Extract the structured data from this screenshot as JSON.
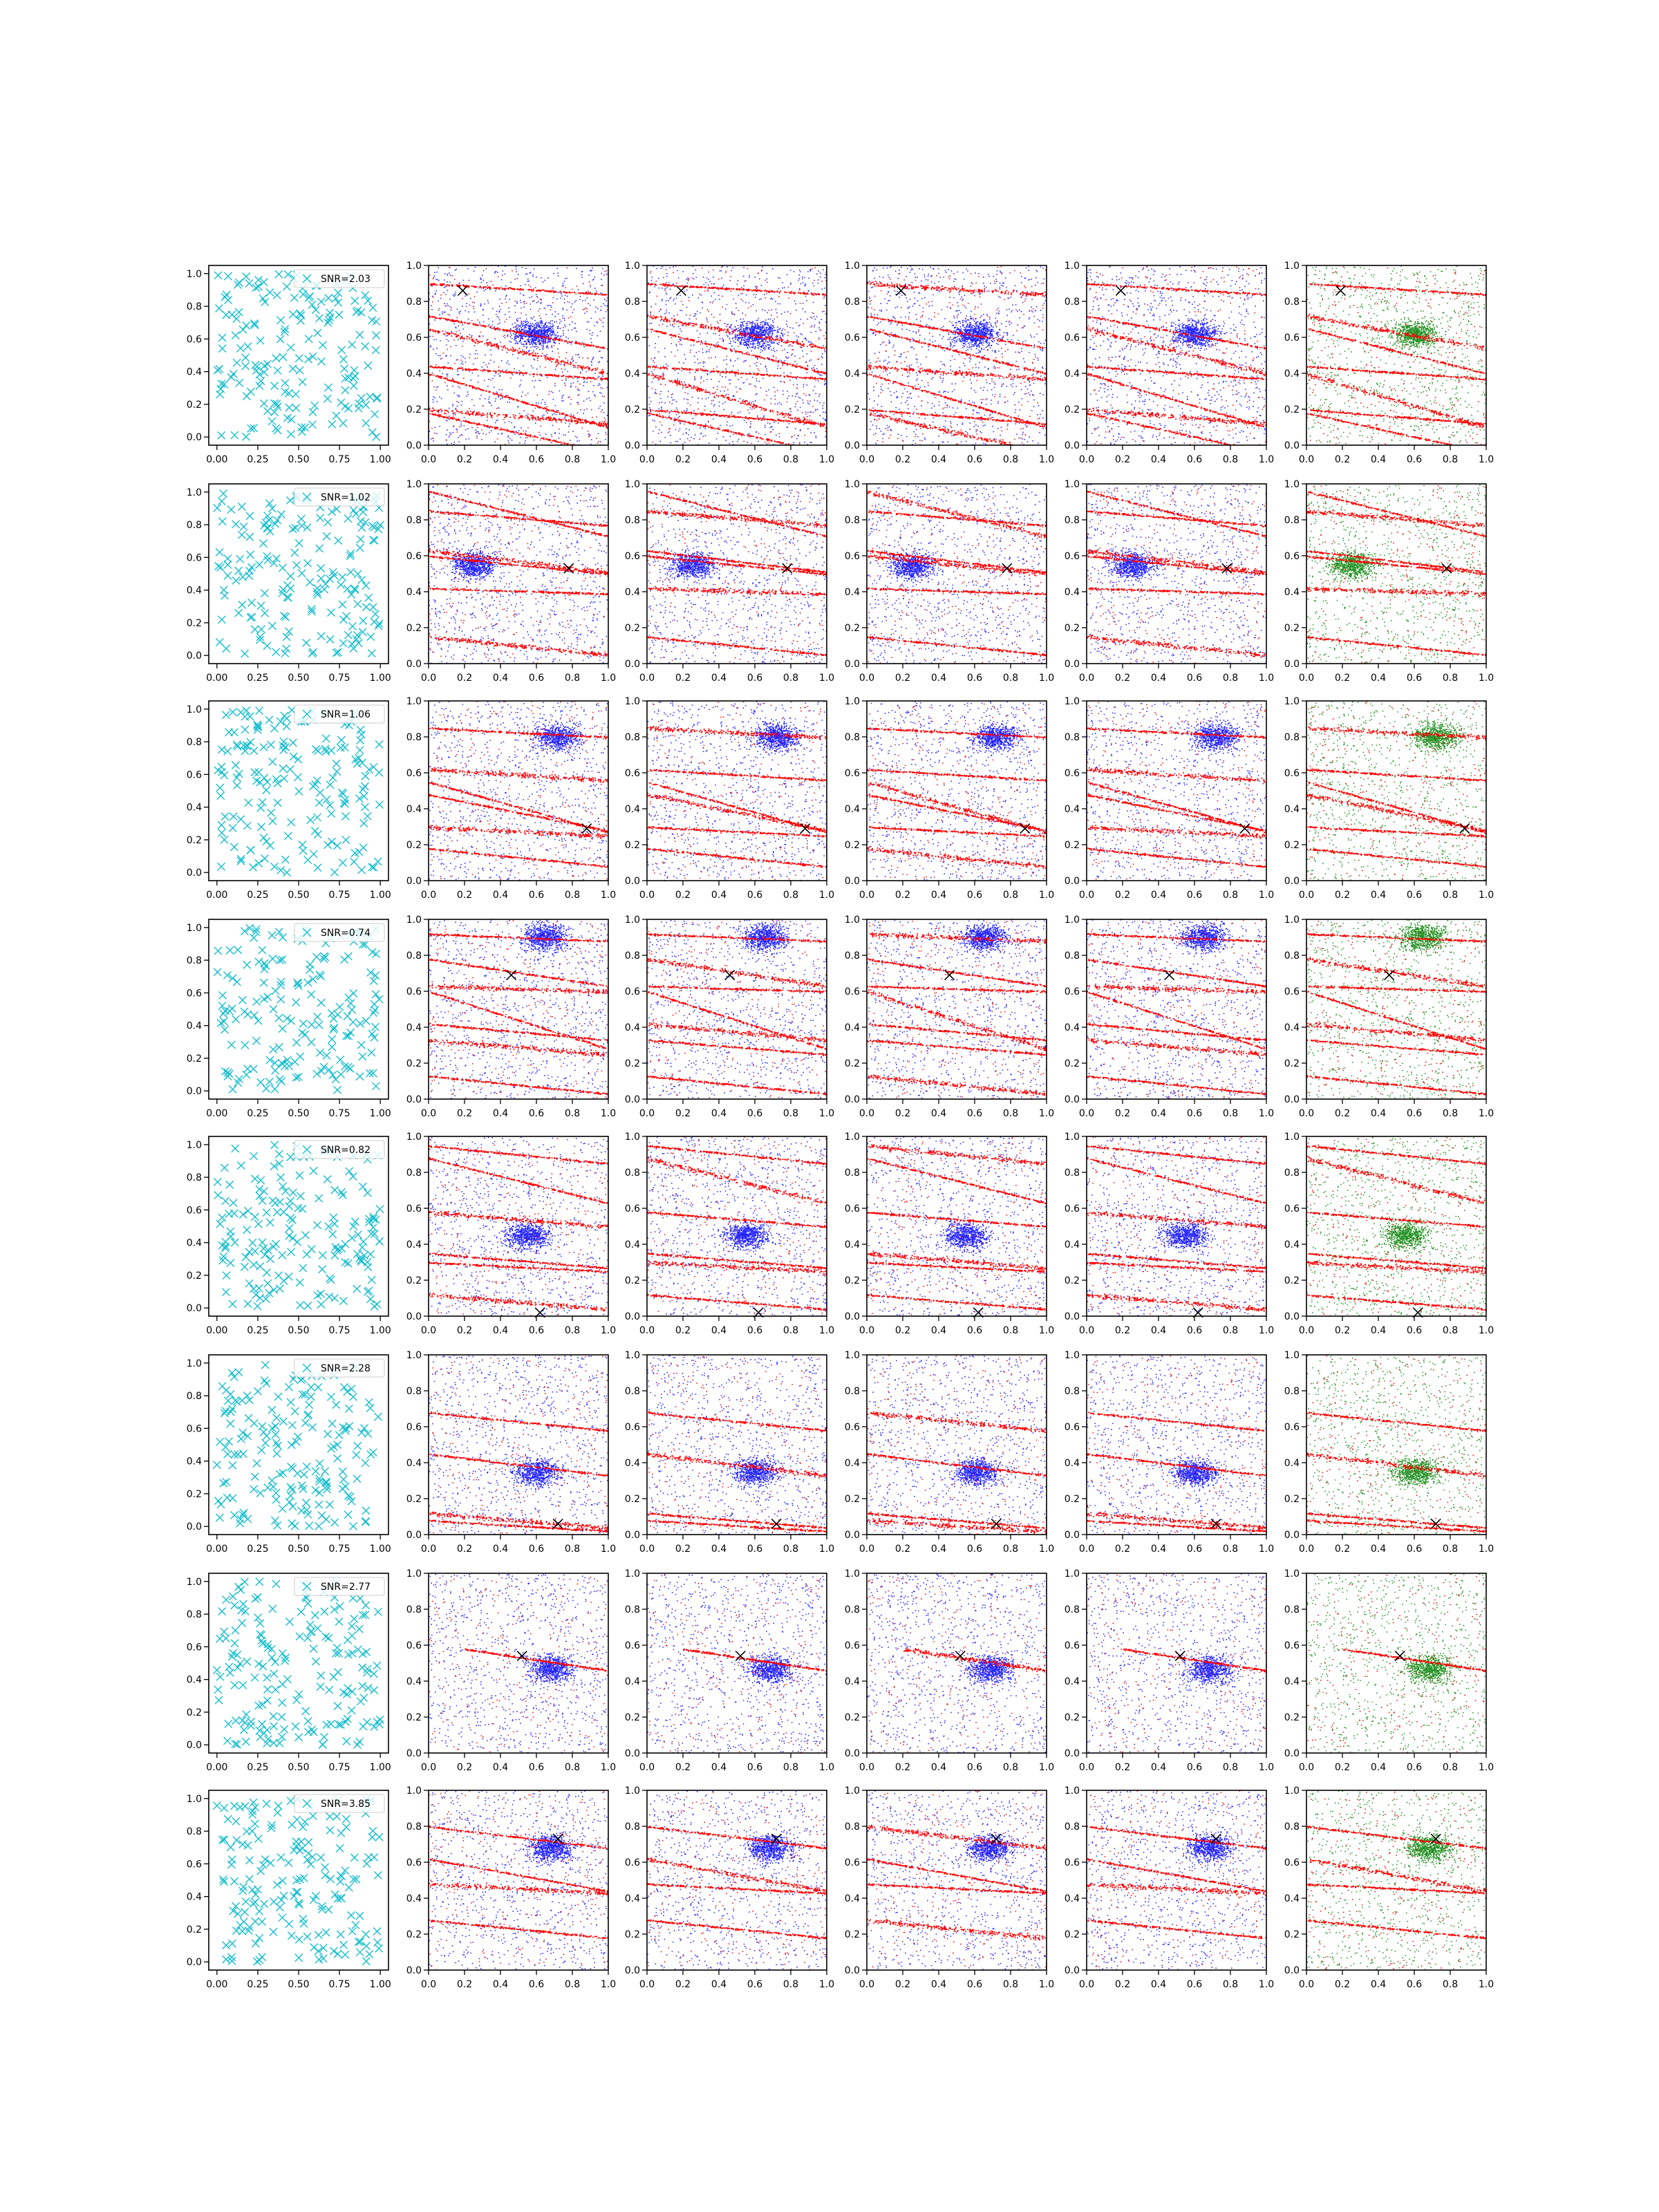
{
  "figure": {
    "rows": 8,
    "columns": 6,
    "background": "#ffffff"
  },
  "colors": {
    "cyan_markers": "#17BECF",
    "blue_points": "#0000FF",
    "red_points": "#FF0000",
    "green_points": "#008000",
    "black_marker": "#000000"
  },
  "axes": {
    "first_column": {
      "xlim": [
        -0.05,
        1.05
      ],
      "ylim": [
        -0.05,
        1.05
      ],
      "xticks": [
        "0.00",
        "0.25",
        "0.50",
        "0.75",
        "1.00"
      ],
      "yticks": [
        "0.0",
        "0.2",
        "0.4",
        "0.6",
        "0.8",
        "1.0"
      ]
    },
    "other_columns": {
      "xlim": [
        0,
        1
      ],
      "ylim": [
        0,
        1
      ],
      "xticks": [
        "0.0",
        "0.2",
        "0.4",
        "0.6",
        "0.8",
        "1.0"
      ],
      "yticks": [
        "0.0",
        "0.2",
        "0.4",
        "0.6",
        "0.8",
        "1.0"
      ]
    }
  },
  "chart_data": [
    {
      "type": "scatter",
      "row": 1,
      "legend": "SNR=2.03",
      "legend_placement": "upper-right",
      "target": [
        0.19,
        0.86
      ],
      "tracks": [
        {
          "x0": 0,
          "y0": 0.9,
          "slope": -0.06
        },
        {
          "x0": 0,
          "y0": 0.72,
          "slope": -0.18
        },
        {
          "x0": 0,
          "y0": 0.65,
          "slope": -0.25
        },
        {
          "x0": 0,
          "y0": 0.44,
          "slope": -0.07
        },
        {
          "x0": 0,
          "y0": 0.4,
          "slope": -0.3
        },
        {
          "x0": 0,
          "y0": 0.2,
          "slope": -0.08
        },
        {
          "x0": 0,
          "y0": 0.18,
          "slope": -0.22
        }
      ],
      "blue_cloud": [
        0.6,
        0.62
      ]
    },
    {
      "type": "scatter",
      "row": 2,
      "legend": "SNR=1.02",
      "legend_placement": "upper-right",
      "target": [
        0.78,
        0.53
      ],
      "tracks": [
        {
          "x0": 0,
          "y0": 0.96,
          "slope": -0.25
        },
        {
          "x0": 0,
          "y0": 0.85,
          "slope": -0.08
        },
        {
          "x0": 0,
          "y0": 0.63,
          "slope": -0.12
        },
        {
          "x0": 0,
          "y0": 0.6,
          "slope": -0.1
        },
        {
          "x0": 0,
          "y0": 0.42,
          "slope": -0.03
        },
        {
          "x0": 0,
          "y0": 0.15,
          "slope": -0.1
        }
      ],
      "blue_cloud": [
        0.25,
        0.55
      ]
    },
    {
      "type": "scatter",
      "row": 3,
      "legend": "SNR=1.06",
      "legend_placement": "upper-right",
      "target": [
        0.88,
        0.29
      ],
      "tracks": [
        {
          "x0": 0,
          "y0": 0.55,
          "slope": -0.28
        },
        {
          "x0": 0,
          "y0": 0.48,
          "slope": -0.2
        },
        {
          "x0": 0,
          "y0": 0.3,
          "slope": -0.05
        },
        {
          "x0": 0,
          "y0": 0.18,
          "slope": -0.1
        },
        {
          "x0": 0,
          "y0": 0.85,
          "slope": -0.05
        },
        {
          "x0": 0,
          "y0": 0.62,
          "slope": -0.06
        }
      ],
      "blue_cloud": [
        0.72,
        0.8
      ]
    },
    {
      "type": "scatter",
      "row": 4,
      "legend": "SNR=0.74",
      "legend_placement": "upper-right",
      "target": [
        0.46,
        0.69
      ],
      "tracks": [
        {
          "x0": 0,
          "y0": 0.92,
          "slope": -0.04
        },
        {
          "x0": 0,
          "y0": 0.78,
          "slope": -0.15
        },
        {
          "x0": 0,
          "y0": 0.63,
          "slope": -0.03
        },
        {
          "x0": 0,
          "y0": 0.6,
          "slope": -0.32
        },
        {
          "x0": 0,
          "y0": 0.42,
          "slope": -0.09
        },
        {
          "x0": 0,
          "y0": 0.33,
          "slope": -0.08
        },
        {
          "x0": 0,
          "y0": 0.13,
          "slope": -0.1
        }
      ],
      "blue_cloud": [
        0.65,
        0.9
      ]
    },
    {
      "type": "scatter",
      "row": 5,
      "legend": "SNR=0.82",
      "legend_placement": "upper-right",
      "target": [
        0.62,
        0.02
      ],
      "tracks": [
        {
          "x0": 0,
          "y0": 0.95,
          "slope": -0.1
        },
        {
          "x0": 0,
          "y0": 0.88,
          "slope": -0.25
        },
        {
          "x0": 0,
          "y0": 0.58,
          "slope": -0.08
        },
        {
          "x0": 0,
          "y0": 0.35,
          "slope": -0.08
        },
        {
          "x0": 0,
          "y0": 0.3,
          "slope": -0.05
        },
        {
          "x0": 0,
          "y0": 0.12,
          "slope": -0.08
        }
      ],
      "blue_cloud": [
        0.55,
        0.45
      ]
    },
    {
      "type": "scatter",
      "row": 6,
      "legend": "SNR=2.28",
      "legend_placement": "upper-right",
      "target": [
        0.72,
        0.06
      ],
      "tracks": [
        {
          "x0": 0,
          "y0": 0.68,
          "slope": -0.1
        },
        {
          "x0": 0,
          "y0": 0.45,
          "slope": -0.12
        },
        {
          "x0": 0,
          "y0": 0.12,
          "slope": -0.08
        },
        {
          "x0": 0,
          "y0": 0.08,
          "slope": -0.06
        }
      ],
      "blue_cloud": [
        0.6,
        0.35
      ]
    },
    {
      "type": "scatter",
      "row": 7,
      "legend": "SNR=2.77",
      "legend_placement": "upper-right",
      "target": [
        0.52,
        0.54
      ],
      "tracks": [
        {
          "x0": 0.2,
          "y0": 0.58,
          "slope": -0.15
        }
      ],
      "blue_cloud": [
        0.68,
        0.47
      ]
    },
    {
      "type": "scatter",
      "row": 8,
      "legend": "SNR=3.85",
      "legend_placement": "upper-right",
      "target": [
        0.72,
        0.73
      ],
      "tracks": [
        {
          "x0": 0,
          "y0": 0.8,
          "slope": -0.12
        },
        {
          "x0": 0,
          "y0": 0.62,
          "slope": -0.18
        },
        {
          "x0": 0,
          "y0": 0.48,
          "slope": -0.05
        },
        {
          "x0": 0,
          "y0": 0.28,
          "slope": -0.1
        }
      ],
      "blue_cloud": [
        0.68,
        0.68
      ]
    }
  ]
}
